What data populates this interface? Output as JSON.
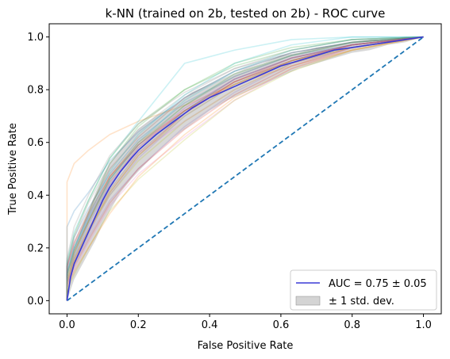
{
  "chart_data": {
    "type": "line",
    "title": "k-NN (trained on 2b, tested on 2b) -  ROC curve",
    "xlabel": "False Positive Rate",
    "ylabel": "True Positive Rate",
    "xlim": [
      -0.05,
      1.05
    ],
    "ylim": [
      -0.05,
      1.05
    ],
    "xticks": [
      0.0,
      0.2,
      0.4,
      0.6,
      0.8,
      1.0
    ],
    "yticks": [
      0.0,
      0.2,
      0.4,
      0.6,
      0.8,
      1.0
    ],
    "xtick_labels": [
      "0.0",
      "0.2",
      "0.4",
      "0.6",
      "0.8",
      "1.0"
    ],
    "ytick_labels": [
      "0.0",
      "0.2",
      "0.4",
      "0.6",
      "0.8",
      "1.0"
    ],
    "grid": false,
    "legend_position": "lower-right",
    "mean_curve": {
      "label": "AUC = 0.75 ± 0.05",
      "color": "#3a3ad6",
      "x": [
        0.0,
        0.01,
        0.02,
        0.04,
        0.06,
        0.08,
        0.1,
        0.12,
        0.15,
        0.18,
        0.2,
        0.25,
        0.3,
        0.35,
        0.4,
        0.45,
        0.5,
        0.55,
        0.6,
        0.65,
        0.7,
        0.75,
        0.8,
        0.85,
        0.9,
        0.95,
        1.0
      ],
      "y": [
        0.0,
        0.09,
        0.14,
        0.2,
        0.26,
        0.32,
        0.38,
        0.43,
        0.49,
        0.54,
        0.57,
        0.63,
        0.68,
        0.73,
        0.77,
        0.8,
        0.83,
        0.86,
        0.89,
        0.91,
        0.93,
        0.95,
        0.96,
        0.97,
        0.98,
        0.99,
        1.0
      ]
    },
    "std_band": {
      "label": "± 1 std. dev.",
      "color": "#a9a9a9",
      "lower": [
        0.0,
        0.04,
        0.08,
        0.13,
        0.18,
        0.23,
        0.29,
        0.34,
        0.41,
        0.46,
        0.49,
        0.56,
        0.62,
        0.67,
        0.72,
        0.76,
        0.79,
        0.82,
        0.85,
        0.88,
        0.9,
        0.92,
        0.94,
        0.95,
        0.97,
        0.98,
        1.0
      ],
      "upper": [
        0.0,
        0.14,
        0.2,
        0.27,
        0.34,
        0.41,
        0.47,
        0.52,
        0.57,
        0.62,
        0.65,
        0.7,
        0.74,
        0.79,
        0.82,
        0.85,
        0.88,
        0.9,
        0.93,
        0.94,
        0.96,
        0.97,
        0.98,
        0.99,
        0.99,
        1.0,
        1.0
      ]
    },
    "chance_line": {
      "color": "#1f77b4",
      "x": [
        0.0,
        1.0
      ],
      "y": [
        0.0,
        1.0
      ]
    },
    "fold_curves": [
      {
        "color": "#1f77b4",
        "x": [
          0,
          0,
          0.02,
          0.06,
          0.12,
          0.2,
          0.33,
          0.47,
          0.63,
          0.8,
          1
        ],
        "y": [
          0,
          0.13,
          0.24,
          0.35,
          0.48,
          0.61,
          0.75,
          0.85,
          0.93,
          0.97,
          1
        ]
      },
      {
        "color": "#ff7f0e",
        "x": [
          0,
          0,
          0.02,
          0.06,
          0.12,
          0.2,
          0.33,
          0.47,
          0.63,
          0.8,
          1
        ],
        "y": [
          0,
          0.45,
          0.52,
          0.57,
          0.63,
          0.68,
          0.74,
          0.82,
          0.89,
          0.95,
          1
        ]
      },
      {
        "color": "#2ca02c",
        "x": [
          0,
          0,
          0.02,
          0.06,
          0.12,
          0.2,
          0.33,
          0.47,
          0.63,
          0.8,
          1
        ],
        "y": [
          0,
          0.1,
          0.2,
          0.33,
          0.52,
          0.66,
          0.8,
          0.9,
          0.96,
          0.99,
          1
        ]
      },
      {
        "color": "#d62728",
        "x": [
          0,
          0,
          0.02,
          0.06,
          0.12,
          0.2,
          0.33,
          0.47,
          0.63,
          0.8,
          1
        ],
        "y": [
          0,
          0.07,
          0.15,
          0.26,
          0.41,
          0.55,
          0.71,
          0.83,
          0.92,
          0.97,
          1
        ]
      },
      {
        "color": "#9467bd",
        "x": [
          0,
          0,
          0.02,
          0.06,
          0.12,
          0.2,
          0.33,
          0.47,
          0.63,
          0.8,
          1
        ],
        "y": [
          0,
          0.06,
          0.14,
          0.24,
          0.38,
          0.5,
          0.66,
          0.79,
          0.9,
          0.96,
          1
        ]
      },
      {
        "color": "#8c564b",
        "x": [
          0,
          0,
          0.02,
          0.06,
          0.12,
          0.2,
          0.33,
          0.47,
          0.63,
          0.8,
          1
        ],
        "y": [
          0,
          0.12,
          0.22,
          0.34,
          0.5,
          0.62,
          0.77,
          0.87,
          0.94,
          0.98,
          1
        ]
      },
      {
        "color": "#e377c2",
        "x": [
          0,
          0,
          0.02,
          0.06,
          0.12,
          0.2,
          0.33,
          0.47,
          0.63,
          0.8,
          1
        ],
        "y": [
          0,
          0.05,
          0.12,
          0.22,
          0.36,
          0.48,
          0.62,
          0.76,
          0.88,
          0.96,
          1
        ]
      },
      {
        "color": "#7f7f7f",
        "x": [
          0,
          0,
          0.02,
          0.06,
          0.12,
          0.2,
          0.33,
          0.47,
          0.63,
          0.8,
          1
        ],
        "y": [
          0,
          0.11,
          0.21,
          0.32,
          0.47,
          0.6,
          0.74,
          0.85,
          0.93,
          0.98,
          1
        ]
      },
      {
        "color": "#bcbd22",
        "x": [
          0,
          0,
          0.02,
          0.06,
          0.12,
          0.2,
          0.33,
          0.47,
          0.63,
          0.8,
          1
        ],
        "y": [
          0,
          0.04,
          0.1,
          0.2,
          0.34,
          0.46,
          0.61,
          0.76,
          0.87,
          0.95,
          1
        ]
      },
      {
        "color": "#17becf",
        "x": [
          0,
          0,
          0.02,
          0.06,
          0.12,
          0.2,
          0.33,
          0.47,
          0.63,
          0.8,
          1
        ],
        "y": [
          0,
          0.15,
          0.26,
          0.38,
          0.54,
          0.68,
          0.9,
          0.95,
          0.99,
          1,
          1
        ]
      },
      {
        "color": "#1f77b4",
        "x": [
          0,
          0,
          0.02,
          0.06,
          0.12,
          0.2,
          0.33,
          0.47,
          0.63,
          0.8,
          1
        ],
        "y": [
          0,
          0.08,
          0.17,
          0.29,
          0.44,
          0.57,
          0.72,
          0.84,
          0.92,
          0.97,
          1
        ]
      },
      {
        "color": "#ff7f0e",
        "x": [
          0,
          0,
          0.02,
          0.06,
          0.12,
          0.2,
          0.33,
          0.47,
          0.63,
          0.8,
          1
        ],
        "y": [
          0,
          0.09,
          0.18,
          0.3,
          0.47,
          0.6,
          0.72,
          0.82,
          0.91,
          0.97,
          1
        ]
      },
      {
        "color": "#2ca02c",
        "x": [
          0,
          0,
          0.02,
          0.06,
          0.12,
          0.2,
          0.33,
          0.47,
          0.63,
          0.8,
          1
        ],
        "y": [
          0,
          0.14,
          0.25,
          0.38,
          0.54,
          0.67,
          0.8,
          0.89,
          0.95,
          0.99,
          1
        ]
      },
      {
        "color": "#d62728",
        "x": [
          0,
          0,
          0.02,
          0.06,
          0.12,
          0.2,
          0.33,
          0.47,
          0.63,
          0.8,
          1
        ],
        "y": [
          0,
          0.06,
          0.13,
          0.23,
          0.37,
          0.5,
          0.65,
          0.78,
          0.89,
          0.96,
          1
        ]
      },
      {
        "color": "#9467bd",
        "x": [
          0,
          0,
          0.02,
          0.06,
          0.12,
          0.2,
          0.33,
          0.47,
          0.63,
          0.8,
          1
        ],
        "y": [
          0,
          0.1,
          0.19,
          0.31,
          0.46,
          0.59,
          0.73,
          0.84,
          0.92,
          0.97,
          1
        ]
      },
      {
        "color": "#8c564b",
        "x": [
          0,
          0,
          0.02,
          0.06,
          0.12,
          0.2,
          0.33,
          0.47,
          0.63,
          0.8,
          1
        ],
        "y": [
          0,
          0.07,
          0.16,
          0.27,
          0.42,
          0.56,
          0.71,
          0.83,
          0.91,
          0.97,
          1
        ]
      },
      {
        "color": "#e377c2",
        "x": [
          0,
          0,
          0.02,
          0.06,
          0.12,
          0.2,
          0.33,
          0.47,
          0.63,
          0.8,
          1
        ],
        "y": [
          0,
          0.12,
          0.21,
          0.32,
          0.45,
          0.56,
          0.68,
          0.8,
          0.9,
          0.96,
          1
        ]
      },
      {
        "color": "#7f7f7f",
        "x": [
          0,
          0,
          0.02,
          0.06,
          0.12,
          0.2,
          0.33,
          0.47,
          0.63,
          0.8,
          1
        ],
        "y": [
          0,
          0.13,
          0.24,
          0.37,
          0.52,
          0.65,
          0.78,
          0.88,
          0.94,
          0.98,
          1
        ]
      },
      {
        "color": "#bcbd22",
        "x": [
          0,
          0,
          0.02,
          0.06,
          0.12,
          0.2,
          0.33,
          0.47,
          0.63,
          0.8,
          1
        ],
        "y": [
          0,
          0.08,
          0.16,
          0.27,
          0.4,
          0.53,
          0.68,
          0.8,
          0.9,
          0.96,
          1
        ]
      },
      {
        "color": "#17becf",
        "x": [
          0,
          0,
          0.02,
          0.06,
          0.12,
          0.2,
          0.33,
          0.47,
          0.63,
          0.8,
          1
        ],
        "y": [
          0,
          0.11,
          0.2,
          0.31,
          0.46,
          0.6,
          0.76,
          0.87,
          0.95,
          0.99,
          1
        ]
      },
      {
        "color": "#1f77b4",
        "x": [
          0,
          0,
          0.02,
          0.06,
          0.12,
          0.2,
          0.33,
          0.47,
          0.63,
          0.8,
          1
        ],
        "y": [
          0,
          0.28,
          0.34,
          0.41,
          0.53,
          0.64,
          0.77,
          0.87,
          0.94,
          0.98,
          1
        ]
      },
      {
        "color": "#ff7f0e",
        "x": [
          0,
          0,
          0.02,
          0.06,
          0.12,
          0.2,
          0.33,
          0.47,
          0.63,
          0.8,
          1
        ],
        "y": [
          0,
          0.05,
          0.11,
          0.2,
          0.33,
          0.47,
          0.63,
          0.77,
          0.88,
          0.95,
          1
        ]
      },
      {
        "color": "#2ca02c",
        "x": [
          0,
          0,
          0.02,
          0.06,
          0.12,
          0.2,
          0.33,
          0.47,
          0.63,
          0.8,
          1
        ],
        "y": [
          0,
          0.09,
          0.18,
          0.3,
          0.46,
          0.59,
          0.74,
          0.86,
          0.93,
          0.98,
          1
        ]
      },
      {
        "color": "#d62728",
        "x": [
          0,
          0,
          0.02,
          0.06,
          0.12,
          0.2,
          0.33,
          0.47,
          0.63,
          0.8,
          1
        ],
        "y": [
          0,
          0.13,
          0.22,
          0.33,
          0.47,
          0.59,
          0.72,
          0.83,
          0.91,
          0.97,
          1
        ]
      },
      {
        "color": "#9467bd",
        "x": [
          0,
          0,
          0.02,
          0.06,
          0.12,
          0.2,
          0.33,
          0.47,
          0.63,
          0.8,
          1
        ],
        "y": [
          0,
          0.06,
          0.14,
          0.25,
          0.4,
          0.54,
          0.7,
          0.82,
          0.91,
          0.97,
          1
        ]
      },
      {
        "color": "#8c564b",
        "x": [
          0,
          0,
          0.02,
          0.06,
          0.12,
          0.2,
          0.33,
          0.47,
          0.63,
          0.8,
          1
        ],
        "y": [
          0,
          0.1,
          0.19,
          0.3,
          0.45,
          0.58,
          0.72,
          0.84,
          0.92,
          0.97,
          1
        ]
      },
      {
        "color": "#e377c2",
        "x": [
          0,
          0,
          0.02,
          0.06,
          0.12,
          0.2,
          0.33,
          0.47,
          0.63,
          0.8,
          1
        ],
        "y": [
          0,
          0.08,
          0.16,
          0.28,
          0.44,
          0.58,
          0.73,
          0.84,
          0.92,
          0.97,
          1
        ]
      },
      {
        "color": "#7f7f7f",
        "x": [
          0,
          0,
          0.02,
          0.06,
          0.12,
          0.2,
          0.33,
          0.47,
          0.63,
          0.8,
          1
        ],
        "y": [
          0,
          0.16,
          0.28,
          0.4,
          0.55,
          0.67,
          0.79,
          0.88,
          0.95,
          0.99,
          1
        ]
      },
      {
        "color": "#bcbd22",
        "x": [
          0,
          0,
          0.02,
          0.06,
          0.12,
          0.2,
          0.33,
          0.47,
          0.63,
          0.8,
          1
        ],
        "y": [
          0,
          0.07,
          0.15,
          0.26,
          0.41,
          0.55,
          0.7,
          0.82,
          0.91,
          0.96,
          1
        ]
      },
      {
        "color": "#17becf",
        "x": [
          0,
          0,
          0.02,
          0.06,
          0.12,
          0.2,
          0.33,
          0.47,
          0.63,
          0.8,
          1
        ],
        "y": [
          0,
          0.1,
          0.2,
          0.32,
          0.49,
          0.63,
          0.78,
          0.9,
          0.97,
          1,
          1
        ]
      }
    ]
  }
}
